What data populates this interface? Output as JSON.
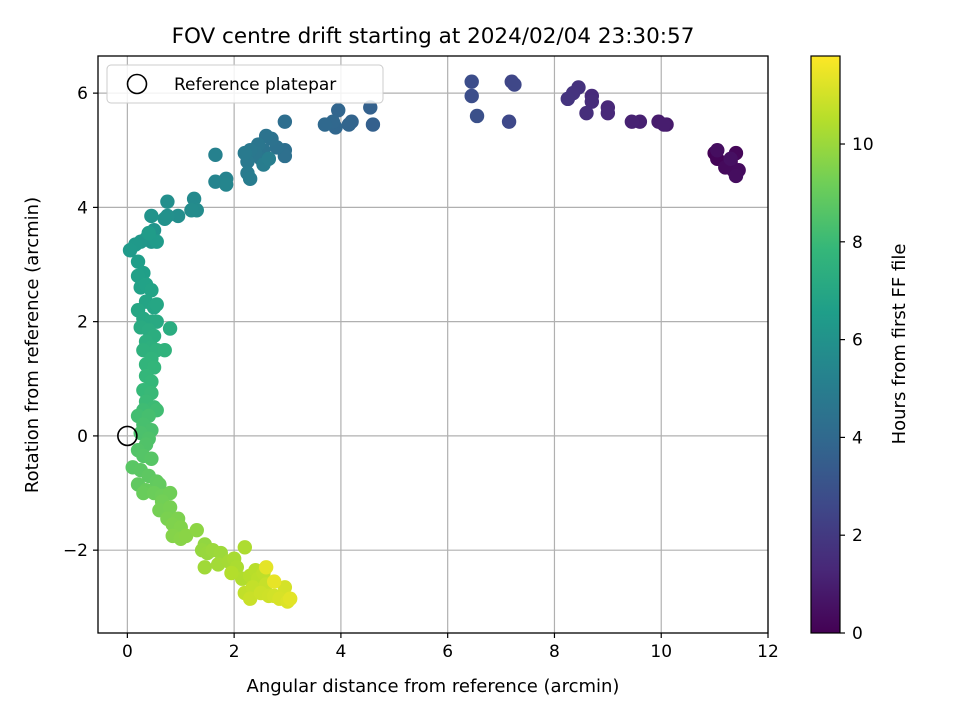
{
  "chart_data": {
    "type": "scatter",
    "title": "FOV centre drift starting at 2024/02/04 23:30:57",
    "xlabel": "Angular distance from reference (arcmin)",
    "ylabel": "Rotation from reference (arcmin)",
    "xlim": [
      -0.55,
      12.0
    ],
    "ylim": [
      -3.45,
      6.65
    ],
    "xticks": [
      0,
      2,
      4,
      6,
      8,
      10,
      12
    ],
    "yticks": [
      -2,
      0,
      2,
      4,
      6
    ],
    "grid": true,
    "legend": {
      "placement": "top-left",
      "entries": [
        "Reference platepar"
      ]
    },
    "reference_point": {
      "x": 0,
      "y": 0,
      "marker": "open-circle"
    },
    "colorbar": {
      "label": "Hours from first FF file",
      "min": 0,
      "max": 11.8,
      "ticks": [
        0,
        2,
        4,
        6,
        8,
        10
      ],
      "colormap": "viridis",
      "colormap_colors": [
        "#440154",
        "#482878",
        "#3e4989",
        "#31688e",
        "#26828e",
        "#1f9e89",
        "#35b779",
        "#6ece58",
        "#b5de2b",
        "#fde725"
      ]
    },
    "points_format": [
      "x_arcmin",
      "y_arcmin",
      "hours"
    ],
    "points": [
      [
        11.0,
        4.95,
        0.05
      ],
      [
        11.05,
        4.85,
        0.1
      ],
      [
        11.3,
        4.8,
        0.15
      ],
      [
        11.4,
        4.95,
        0.2
      ],
      [
        11.35,
        4.65,
        0.25
      ],
      [
        11.2,
        4.7,
        0.3
      ],
      [
        11.45,
        4.65,
        0.35
      ],
      [
        11.4,
        4.55,
        0.4
      ],
      [
        11.05,
        5.0,
        0.45
      ],
      [
        11.3,
        4.85,
        0.5
      ],
      [
        10.1,
        5.45,
        0.85
      ],
      [
        9.95,
        5.5,
        0.9
      ],
      [
        10.05,
        5.45,
        0.95
      ],
      [
        9.6,
        5.5,
        1.05
      ],
      [
        9.45,
        5.5,
        1.1
      ],
      [
        9.0,
        5.75,
        1.3
      ],
      [
        9.0,
        5.65,
        1.35
      ],
      [
        8.7,
        5.95,
        1.45
      ],
      [
        8.7,
        5.85,
        1.5
      ],
      [
        8.6,
        5.65,
        1.55
      ],
      [
        8.45,
        6.1,
        1.7
      ],
      [
        8.35,
        6.0,
        1.75
      ],
      [
        8.25,
        5.9,
        1.8
      ],
      [
        7.2,
        6.2,
        2.5
      ],
      [
        7.25,
        6.15,
        2.55
      ],
      [
        7.15,
        5.5,
        2.6
      ],
      [
        6.45,
        6.2,
        2.8
      ],
      [
        6.45,
        5.95,
        2.85
      ],
      [
        6.55,
        5.6,
        2.9
      ],
      [
        4.6,
        5.45,
        3.6
      ],
      [
        4.55,
        5.75,
        3.65
      ],
      [
        4.2,
        5.5,
        3.75
      ],
      [
        4.15,
        5.45,
        3.8
      ],
      [
        3.95,
        5.7,
        3.85
      ],
      [
        3.9,
        5.4,
        3.9
      ],
      [
        3.85,
        5.5,
        3.95
      ],
      [
        3.7,
        5.45,
        4.0
      ],
      [
        2.95,
        5.5,
        4.25
      ],
      [
        2.95,
        5.0,
        4.3
      ],
      [
        2.95,
        4.9,
        4.35
      ],
      [
        2.8,
        5.05,
        4.4
      ],
      [
        2.7,
        5.2,
        4.45
      ],
      [
        2.6,
        5.25,
        4.5
      ],
      [
        2.55,
        5.0,
        4.55
      ],
      [
        2.5,
        4.85,
        4.6
      ],
      [
        2.45,
        5.1,
        4.65
      ],
      [
        2.4,
        4.95,
        4.7
      ],
      [
        2.3,
        5.0,
        4.75
      ],
      [
        2.25,
        4.8,
        4.8
      ],
      [
        2.2,
        4.95,
        4.85
      ],
      [
        2.25,
        4.6,
        4.9
      ],
      [
        2.3,
        4.5,
        4.95
      ],
      [
        2.55,
        4.75,
        5.0
      ],
      [
        2.65,
        4.85,
        5.05
      ],
      [
        1.65,
        4.92,
        5.2
      ],
      [
        1.85,
        4.5,
        5.3
      ],
      [
        1.65,
        4.45,
        5.35
      ],
      [
        1.85,
        4.4,
        5.4
      ],
      [
        1.25,
        4.15,
        5.6
      ],
      [
        1.3,
        3.95,
        5.65
      ],
      [
        1.2,
        3.95,
        5.7
      ],
      [
        0.95,
        3.85,
        5.8
      ],
      [
        0.75,
        4.1,
        5.85
      ],
      [
        0.75,
        3.85,
        5.9
      ],
      [
        0.7,
        3.8,
        5.95
      ],
      [
        0.45,
        3.85,
        6.05
      ],
      [
        0.5,
        3.6,
        6.1
      ],
      [
        0.45,
        3.4,
        6.15
      ],
      [
        0.35,
        3.45,
        6.2
      ],
      [
        0.25,
        3.4,
        6.25
      ],
      [
        0.15,
        3.35,
        6.3
      ],
      [
        0.05,
        3.25,
        6.35
      ],
      [
        0.55,
        3.4,
        6.4
      ],
      [
        0.4,
        3.55,
        6.45
      ],
      [
        0.2,
        3.05,
        6.55
      ],
      [
        0.3,
        2.85,
        6.6
      ],
      [
        0.2,
        2.8,
        6.65
      ],
      [
        0.25,
        2.6,
        6.7
      ],
      [
        0.35,
        2.65,
        6.75
      ],
      [
        0.45,
        2.55,
        6.8
      ],
      [
        0.35,
        2.35,
        6.85
      ],
      [
        0.5,
        2.25,
        6.9
      ],
      [
        0.55,
        2.3,
        6.95
      ],
      [
        0.2,
        2.2,
        7.0
      ],
      [
        0.3,
        2.05,
        7.05
      ],
      [
        0.45,
        2.0,
        7.1
      ],
      [
        0.55,
        2.0,
        7.15
      ],
      [
        0.25,
        1.9,
        7.2
      ],
      [
        0.4,
        1.85,
        7.25
      ],
      [
        0.8,
        1.88,
        7.3
      ],
      [
        0.5,
        1.75,
        7.35
      ],
      [
        0.35,
        1.65,
        7.4
      ],
      [
        0.45,
        1.55,
        7.45
      ],
      [
        0.3,
        1.5,
        7.5
      ],
      [
        0.55,
        1.5,
        7.55
      ],
      [
        0.7,
        1.5,
        7.6
      ],
      [
        0.45,
        1.35,
        7.65
      ],
      [
        0.35,
        1.25,
        7.7
      ],
      [
        0.5,
        1.2,
        7.75
      ],
      [
        0.35,
        1.05,
        7.8
      ],
      [
        0.45,
        0.95,
        7.85
      ],
      [
        0.3,
        0.8,
        7.9
      ],
      [
        0.45,
        0.75,
        7.95
      ],
      [
        0.35,
        0.6,
        8.0
      ],
      [
        0.5,
        0.5,
        8.05
      ],
      [
        0.3,
        0.45,
        8.1
      ],
      [
        0.55,
        0.45,
        8.15
      ],
      [
        0.2,
        0.35,
        8.2
      ],
      [
        0.4,
        0.35,
        8.25
      ],
      [
        0.3,
        0.2,
        8.3
      ],
      [
        0.45,
        0.1,
        8.35
      ],
      [
        0.25,
        0.05,
        8.4
      ],
      [
        0.4,
        -0.05,
        8.45
      ],
      [
        0.35,
        -0.15,
        8.5
      ],
      [
        0.2,
        -0.25,
        8.55
      ],
      [
        0.3,
        -0.35,
        8.6
      ],
      [
        0.45,
        -0.4,
        8.65
      ],
      [
        0.1,
        -0.55,
        8.7
      ],
      [
        0.25,
        -0.6,
        8.75
      ],
      [
        0.4,
        -0.7,
        8.8
      ],
      [
        0.2,
        -0.85,
        8.85
      ],
      [
        0.55,
        -0.8,
        8.9
      ],
      [
        0.6,
        -0.85,
        8.95
      ],
      [
        0.35,
        -0.95,
        9.0
      ],
      [
        0.3,
        -1.0,
        9.05
      ],
      [
        0.5,
        -1.0,
        9.1
      ],
      [
        0.65,
        -1.05,
        9.15
      ],
      [
        0.8,
        -1.0,
        9.2
      ],
      [
        0.65,
        -1.15,
        9.25
      ],
      [
        0.6,
        -1.3,
        9.3
      ],
      [
        0.8,
        -1.25,
        9.35
      ],
      [
        0.75,
        -1.45,
        9.4
      ],
      [
        0.95,
        -1.45,
        9.45
      ],
      [
        0.85,
        -1.55,
        9.5
      ],
      [
        1.0,
        -1.6,
        9.55
      ],
      [
        0.85,
        -1.75,
        9.6
      ],
      [
        1.0,
        -1.8,
        9.65
      ],
      [
        1.1,
        -1.75,
        9.7
      ],
      [
        1.3,
        -1.65,
        9.75
      ],
      [
        1.45,
        -1.9,
        9.85
      ],
      [
        1.4,
        -2.0,
        9.9
      ],
      [
        1.5,
        -2.05,
        9.95
      ],
      [
        1.6,
        -2.0,
        10.0
      ],
      [
        1.75,
        -2.05,
        10.05
      ],
      [
        1.45,
        -2.3,
        10.1
      ],
      [
        1.7,
        -2.25,
        10.15
      ],
      [
        1.9,
        -2.2,
        10.2
      ],
      [
        2.0,
        -2.15,
        10.25
      ],
      [
        2.05,
        -2.3,
        10.3
      ],
      [
        2.2,
        -1.95,
        10.35
      ],
      [
        2.15,
        -2.5,
        10.4
      ],
      [
        1.95,
        -2.4,
        10.45
      ],
      [
        2.3,
        -2.45,
        10.5
      ],
      [
        2.4,
        -2.35,
        10.55
      ],
      [
        2.45,
        -2.5,
        10.6
      ],
      [
        2.55,
        -2.4,
        10.65
      ],
      [
        2.2,
        -2.75,
        10.7
      ],
      [
        2.35,
        -2.65,
        10.75
      ],
      [
        2.6,
        -2.6,
        10.8
      ],
      [
        2.3,
        -2.85,
        10.85
      ],
      [
        2.5,
        -2.75,
        10.9
      ],
      [
        2.65,
        -2.8,
        10.95
      ],
      [
        2.75,
        -2.8,
        11.0
      ],
      [
        2.95,
        -2.65,
        11.05
      ],
      [
        2.85,
        -2.85,
        11.1
      ],
      [
        3.0,
        -2.9,
        11.2
      ],
      [
        3.05,
        -2.85,
        11.3
      ],
      [
        2.6,
        -2.3,
        11.35
      ],
      [
        2.75,
        -2.55,
        11.4
      ]
    ]
  }
}
